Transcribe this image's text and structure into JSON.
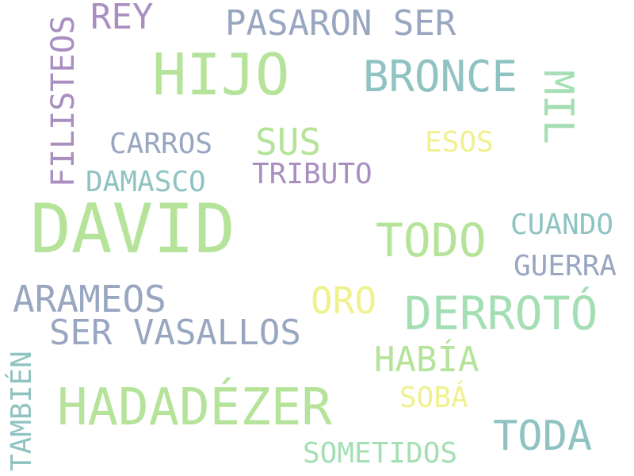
{
  "palette": {
    "green": "#b5e39a",
    "teal": "#8fc3c2",
    "blue_gray": "#98a6c0",
    "purple": "#a98ec0",
    "yellow": "#f0f08e",
    "mint": "#a4dfb4"
  },
  "words": [
    {
      "text": "DAVID",
      "weight": 1.0,
      "color": "green",
      "orientation": "horizontal"
    },
    {
      "text": "HIJO",
      "weight": 0.72,
      "color": "green",
      "orientation": "horizontal"
    },
    {
      "text": "HADADÉZER",
      "weight": 0.72,
      "color": "green",
      "orientation": "horizontal"
    },
    {
      "text": "DERROTÓ",
      "weight": 0.65,
      "color": "mint",
      "orientation": "horizontal"
    },
    {
      "text": "TODO",
      "weight": 0.65,
      "color": "green",
      "orientation": "horizontal"
    },
    {
      "text": "BRONCE",
      "weight": 0.6,
      "color": "teal",
      "orientation": "horizontal"
    },
    {
      "text": "MIL",
      "weight": 0.6,
      "color": "mint",
      "orientation": "vertical"
    },
    {
      "text": "TODA",
      "weight": 0.55,
      "color": "teal",
      "orientation": "horizontal"
    },
    {
      "text": "PASARON SER",
      "weight": 0.5,
      "color": "blue_gray",
      "orientation": "horizontal"
    },
    {
      "text": "SER VASALLOS",
      "weight": 0.5,
      "color": "blue_gray",
      "orientation": "horizontal"
    },
    {
      "text": "ARAMEOS",
      "weight": 0.5,
      "color": "blue_gray",
      "orientation": "horizontal"
    },
    {
      "text": "REY",
      "weight": 0.5,
      "color": "purple",
      "orientation": "horizontal"
    },
    {
      "text": "SUS",
      "weight": 0.5,
      "color": "green",
      "orientation": "horizontal"
    },
    {
      "text": "ORO",
      "weight": 0.5,
      "color": "yellow",
      "orientation": "horizontal"
    },
    {
      "text": "HABÍA",
      "weight": 0.48,
      "color": "green",
      "orientation": "horizontal"
    },
    {
      "text": "FILISTEOS",
      "weight": 0.45,
      "color": "purple",
      "orientation": "vertical"
    },
    {
      "text": "TAMBIÉN",
      "weight": 0.42,
      "color": "teal",
      "orientation": "vertical"
    },
    {
      "text": "CARROS",
      "weight": 0.4,
      "color": "blue_gray",
      "orientation": "horizontal"
    },
    {
      "text": "ESOS",
      "weight": 0.4,
      "color": "yellow",
      "orientation": "horizontal"
    },
    {
      "text": "DAMASCO",
      "weight": 0.4,
      "color": "teal",
      "orientation": "horizontal"
    },
    {
      "text": "TRIBUTO",
      "weight": 0.4,
      "color": "purple",
      "orientation": "horizontal"
    },
    {
      "text": "CUANDO",
      "weight": 0.4,
      "color": "teal",
      "orientation": "horizontal"
    },
    {
      "text": "GUERRA",
      "weight": 0.4,
      "color": "blue_gray",
      "orientation": "horizontal"
    },
    {
      "text": "SOBÁ",
      "weight": 0.4,
      "color": "yellow",
      "orientation": "horizontal"
    },
    {
      "text": "SOMETIDOS",
      "weight": 0.4,
      "color": "mint",
      "orientation": "horizontal"
    }
  ]
}
